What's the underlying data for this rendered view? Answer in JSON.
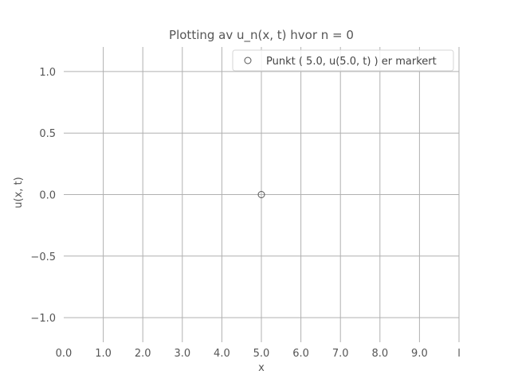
{
  "chart_data": {
    "type": "scatter",
    "title": "Plotting av u_n(x, t) hvor n = 0",
    "xlabel": "x",
    "ylabel": "u(x, t)",
    "xlim": [
      0.0,
      10.0
    ],
    "ylim": [
      -1.2,
      1.2
    ],
    "x_ticks": [
      0,
      1,
      2,
      3,
      4,
      5,
      6,
      7,
      8,
      9,
      10
    ],
    "x_tick_labels": [
      "0.0",
      "1.0",
      "2.0",
      "3.0",
      "4.0",
      "5.0",
      "6.0",
      "7.0",
      "8.0",
      "9.0",
      "l"
    ],
    "y_ticks": [
      -1.0,
      -0.5,
      0.0,
      0.5,
      1.0
    ],
    "y_tick_labels": [
      "−1.0",
      "−0.5",
      "0.0",
      "0.5",
      "1.0"
    ],
    "grid": true,
    "legend_position": "top-right",
    "series": [
      {
        "name": "Punkt ( 5.0, u(5.0, t) ) er markert",
        "marker": "hollow-circle",
        "color": "#555555",
        "points": [
          {
            "x": 5.0,
            "y": 0.0
          }
        ]
      }
    ]
  }
}
